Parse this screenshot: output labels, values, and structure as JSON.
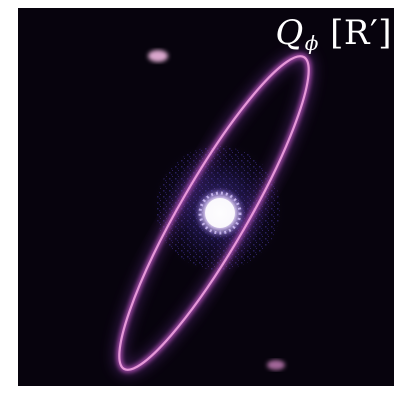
{
  "panel": {
    "label_main": "Q",
    "label_sub": "ϕ",
    "label_unit": "[R′]"
  },
  "colors": {
    "background": "#07030d",
    "ring_bright": "#f3a8e6",
    "ring_mid": "#c45cb8",
    "ring_dim": "#5a2a8a",
    "noise": "#3b2b8a",
    "center_mask": "#ffffff"
  }
}
